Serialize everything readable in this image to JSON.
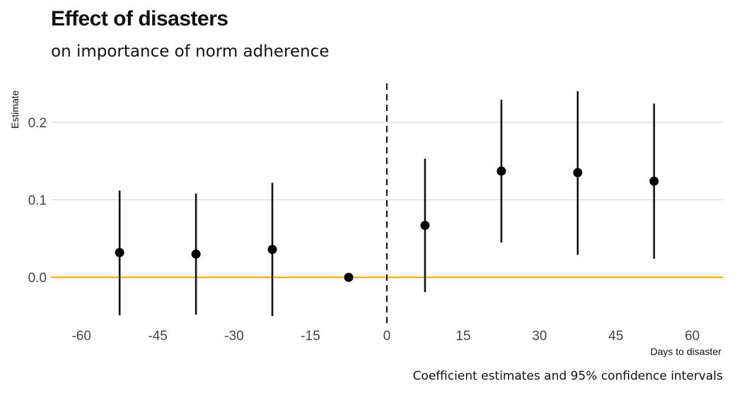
{
  "chart_data": {
    "type": "scatter",
    "title": "Effect of disasters",
    "subtitle": "on importance of norm adherence",
    "caption": "Coefficient estimates and 95% confidence intervals",
    "xlabel": "Days to disaster",
    "ylabel": "Estimate",
    "xlim": [
      -66,
      66
    ],
    "ylim": [
      -0.06,
      0.25
    ],
    "x_ticks": [
      -60,
      -45,
      -30,
      -15,
      0,
      15,
      30,
      45,
      60
    ],
    "x_tick_labels": [
      "-60",
      "-45",
      "-30",
      "-15",
      "0",
      "15",
      "30",
      "45",
      "60"
    ],
    "y_ticks": [
      0.0,
      0.1,
      0.2
    ],
    "y_tick_labels": [
      "0.0",
      "0.1",
      "0.2"
    ],
    "reference_line_y": 0,
    "reference_line_color": "#f5a300",
    "event_line_x": 0,
    "points": [
      {
        "x": -52.5,
        "estimate": 0.032,
        "lower": -0.049,
        "upper": 0.112
      },
      {
        "x": -37.5,
        "estimate": 0.03,
        "lower": -0.048,
        "upper": 0.108
      },
      {
        "x": -22.5,
        "estimate": 0.036,
        "lower": -0.05,
        "upper": 0.122
      },
      {
        "x": -7.5,
        "estimate": 0.0,
        "lower": 0.0,
        "upper": 0.0
      },
      {
        "x": 7.5,
        "estimate": 0.067,
        "lower": -0.019,
        "upper": 0.153
      },
      {
        "x": 22.5,
        "estimate": 0.137,
        "lower": 0.045,
        "upper": 0.229
      },
      {
        "x": 37.5,
        "estimate": 0.135,
        "lower": 0.029,
        "upper": 0.24
      },
      {
        "x": 52.5,
        "estimate": 0.124,
        "lower": 0.024,
        "upper": 0.224
      }
    ]
  }
}
